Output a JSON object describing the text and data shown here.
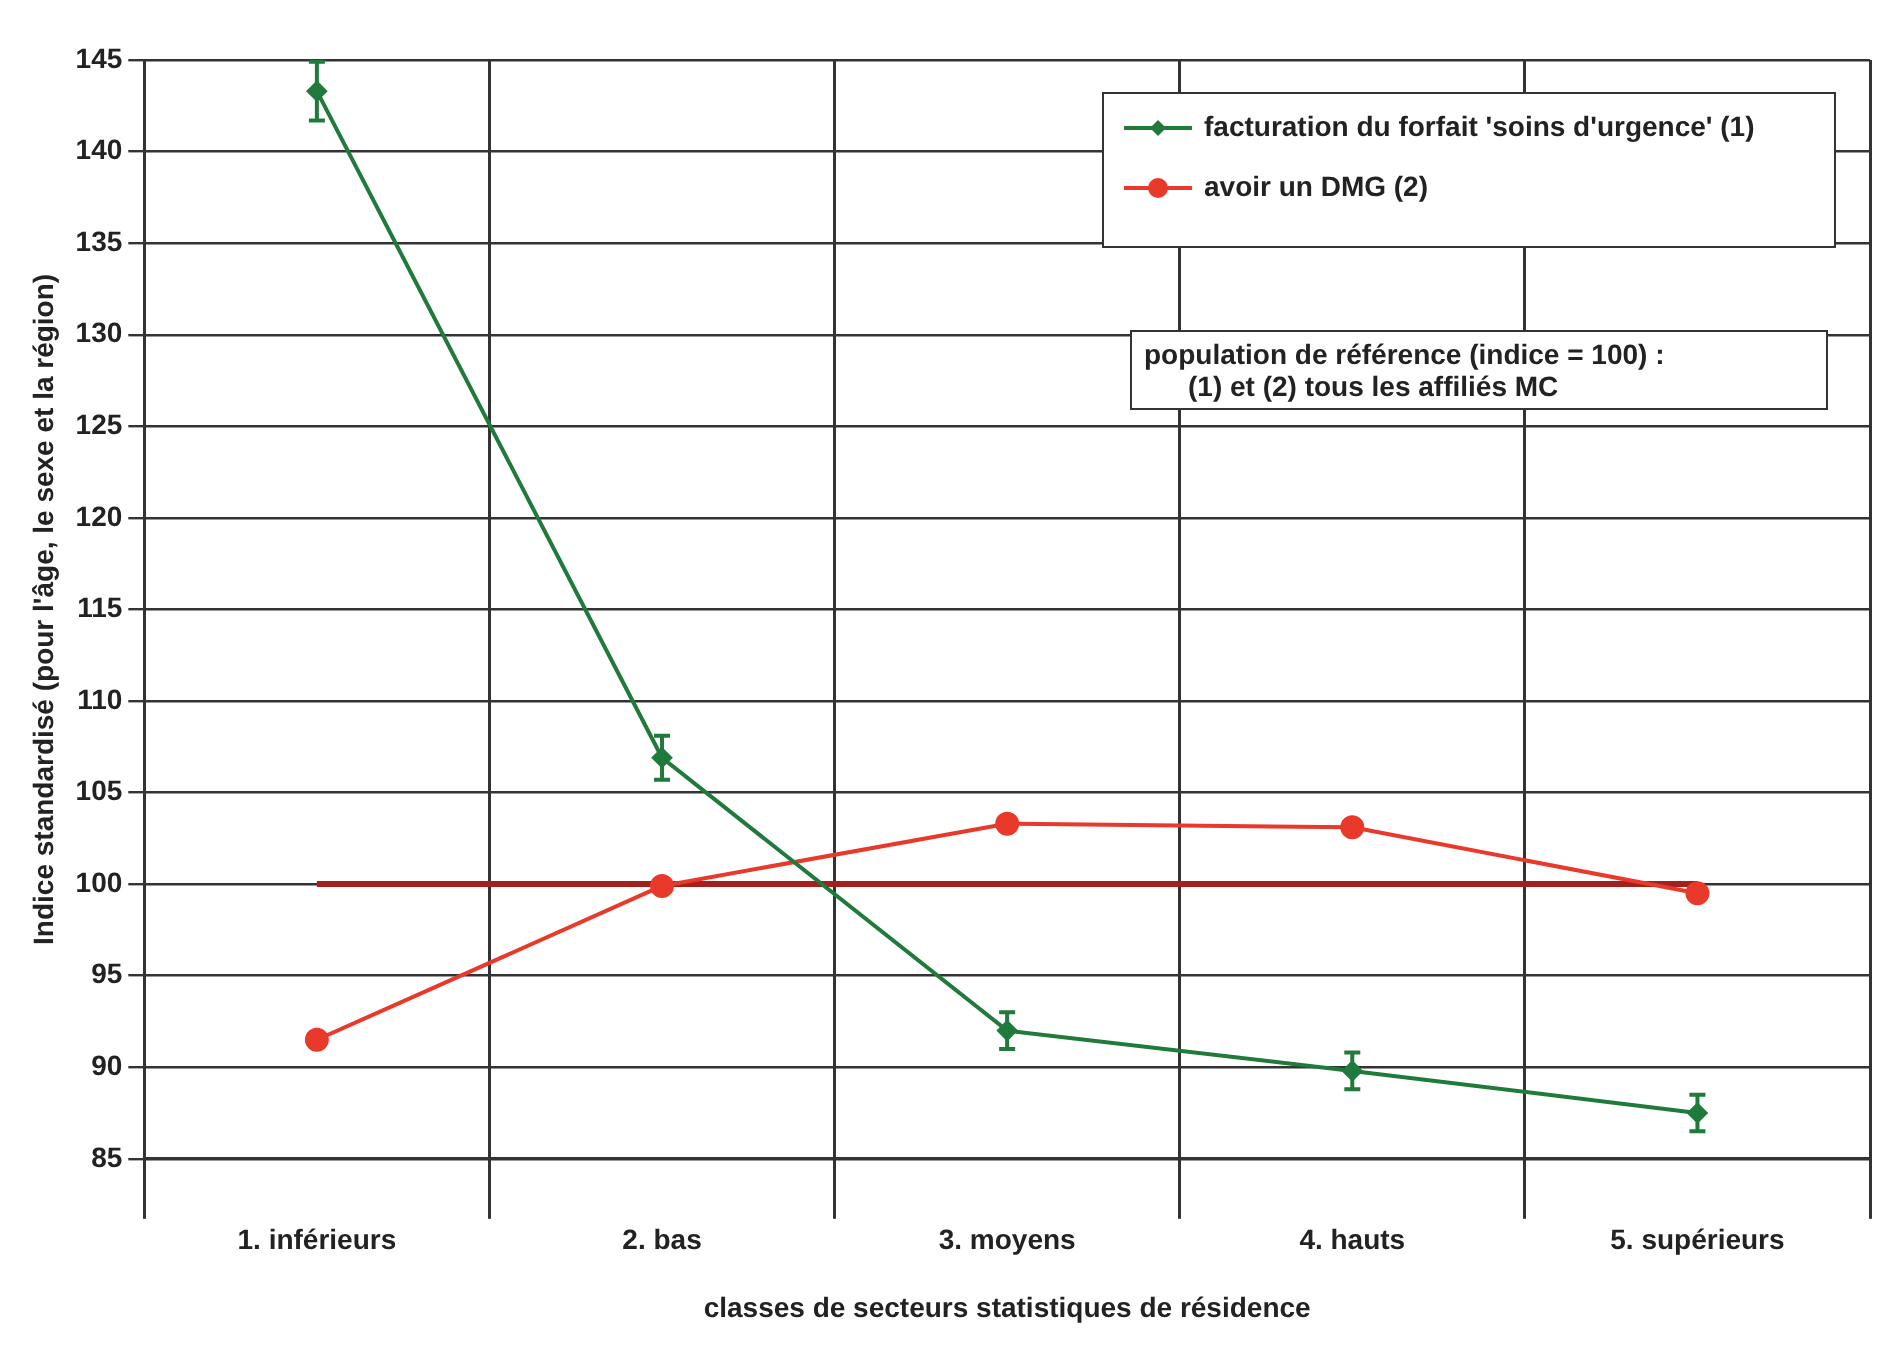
{
  "chart_data": {
    "type": "line",
    "ylabel": "Indice standardisé (pour l'âge, le sexe et la région)",
    "xlabel": "classes de secteurs statistiques de résidence",
    "categories": [
      "1. inférieurs",
      "2. bas",
      "3. moyens",
      "4. hauts",
      "5. supérieurs"
    ],
    "series": [
      {
        "name": "facturation du forfait 'soins d'urgence' (1)",
        "color": "#1f7a3c",
        "marker": "diamond",
        "values": [
          143.3,
          106.9,
          92.0,
          89.8,
          87.5
        ],
        "errors": [
          1.6,
          1.2,
          1.0,
          1.0,
          1.0
        ]
      },
      {
        "name": "avoir un DMG (2)",
        "color": "#e8392b",
        "marker": "circle",
        "values": [
          91.5,
          99.9,
          103.3,
          103.1,
          99.5
        ]
      }
    ],
    "ref_lines": [
      {
        "axis": "y",
        "value": 100,
        "color": "#a3201c"
      }
    ],
    "ylim": [
      85,
      145
    ],
    "yticks": [
      85,
      90,
      95,
      100,
      105,
      110,
      115,
      120,
      125,
      130,
      135,
      140,
      145
    ],
    "grid": true,
    "legend": "top right",
    "annotations": [
      "population de référence (indice = 100) :",
      "(1) et (2) tous les affiliés MC"
    ]
  }
}
